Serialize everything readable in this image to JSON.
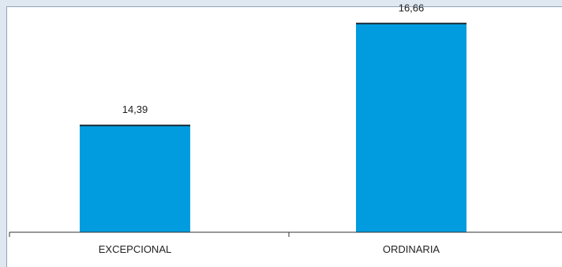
{
  "chart_data": {
    "type": "bar",
    "categories": [
      "EXCEPCIONAL",
      "ORDINARIA"
    ],
    "values": [
      14.39,
      16.66
    ],
    "data_labels": [
      "14,39",
      "16,66"
    ],
    "title": "",
    "xlabel": "",
    "ylabel": "",
    "ylim": [
      12.0,
      17.0
    ],
    "grid": false,
    "legend": "none",
    "colors": {
      "bar": "#009cdf",
      "bar_top": "#1d2a36",
      "frame": "#dfe8f1",
      "axis": "#333333"
    }
  }
}
